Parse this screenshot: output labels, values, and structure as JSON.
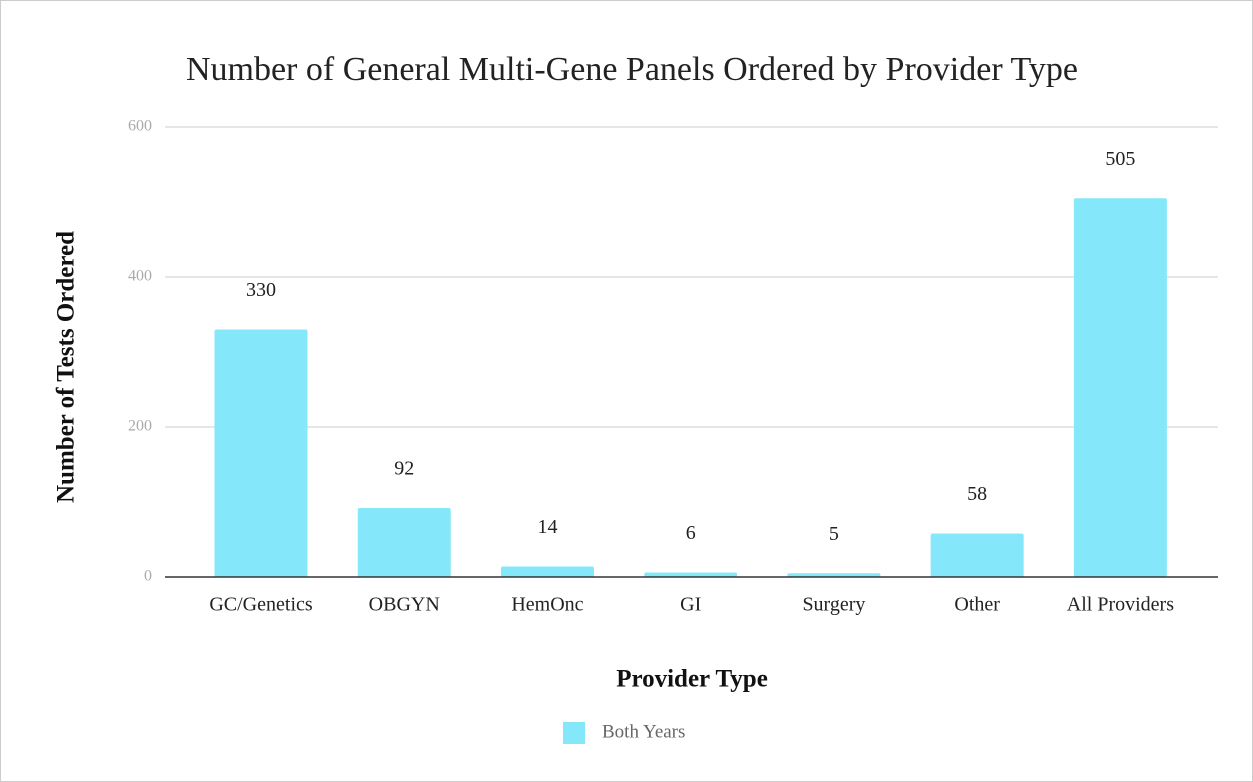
{
  "chart_data": {
    "type": "bar",
    "title": "Number of General Multi-Gene Panels Ordered by Provider Type",
    "x_label": "Provider Type",
    "y_label": "Number of Tests Ordered",
    "categories": [
      "GC/Genetics",
      "OBGYN",
      "HemOnc",
      "GI",
      "Surgery",
      "Other",
      "All Providers"
    ],
    "series": [
      {
        "name": "Both Years",
        "color": "#84e8fa",
        "values": [
          330,
          92,
          14,
          6,
          5,
          58,
          505
        ]
      }
    ],
    "ylim": [
      0,
      600
    ],
    "yticks": [
      0,
      200,
      400,
      600
    ],
    "grid": true,
    "legend": "bottom"
  }
}
